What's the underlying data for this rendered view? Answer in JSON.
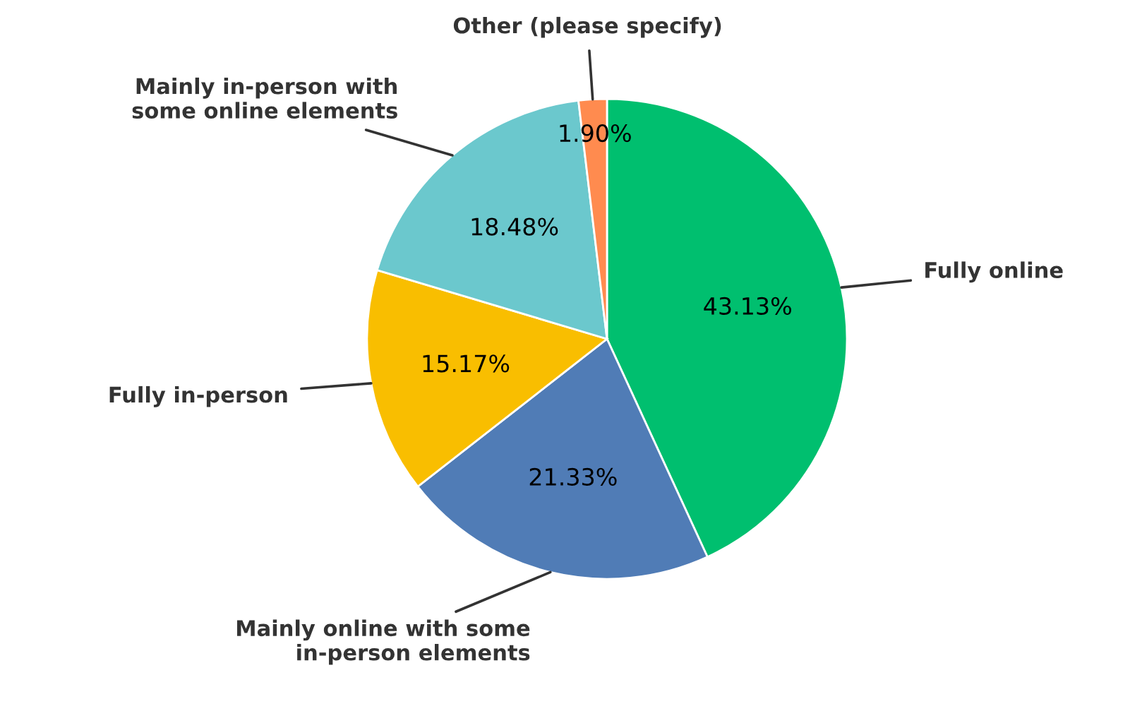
{
  "chart_data": {
    "type": "pie",
    "categories": [
      "Fully online",
      "Mainly online with some\nin-person elements",
      "Fully in-person",
      "Mainly in-person with\nsome online elements",
      "Other (please specify)"
    ],
    "values": [
      43.13,
      21.33,
      15.17,
      18.48,
      1.9
    ],
    "value_labels": [
      "43.13%",
      "21.33%",
      "15.17%",
      "18.48%",
      "1.90%"
    ],
    "colors": [
      "#00bf6f",
      "#507cb6",
      "#f9be00",
      "#6bc8cd",
      "#ff8b4f"
    ]
  }
}
